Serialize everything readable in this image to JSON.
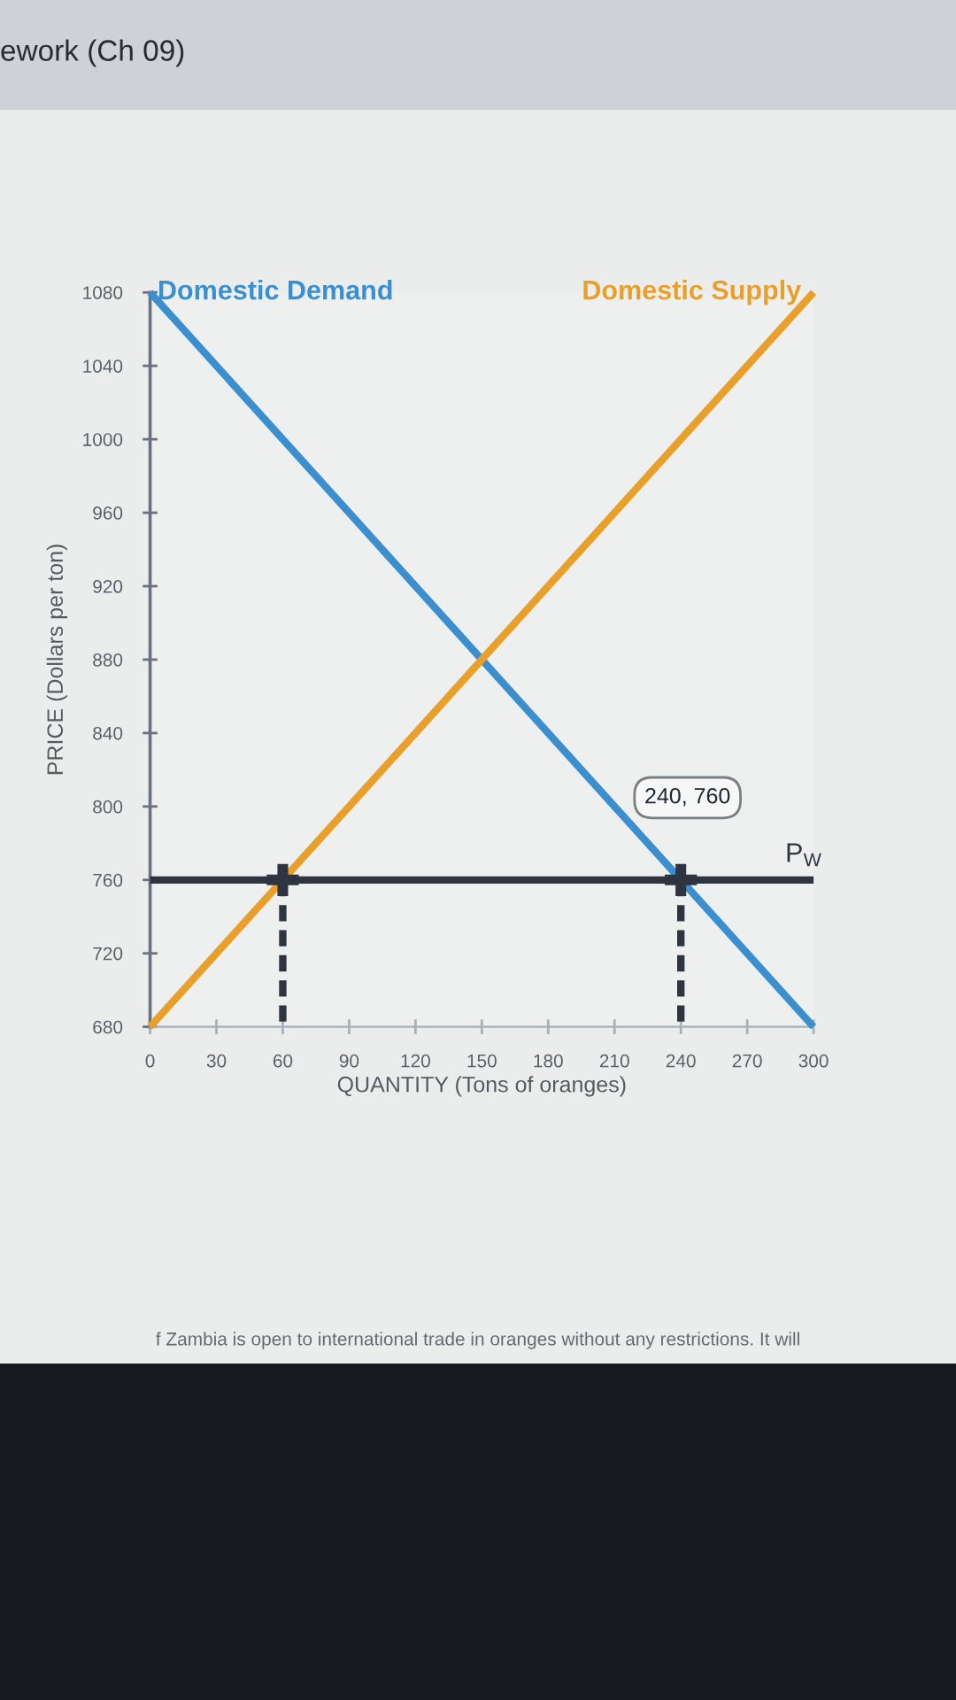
{
  "chart_data": {
    "type": "line",
    "title": "ework (Ch 09)",
    "xlabel": "QUANTITY (Tons of oranges)",
    "ylabel": "PRICE (Dollars per ton)",
    "series": [
      {
        "name": "Domestic Demand",
        "color": "#3b8fcf",
        "x": [
          0,
          300
        ],
        "values": [
          1080,
          680
        ]
      },
      {
        "name": "Domestic Supply",
        "color": "#e8a02a",
        "x": [
          0,
          300
        ],
        "values": [
          680,
          1080
        ]
      },
      {
        "name": "P$_{W}$",
        "color": "#2e3440",
        "x": [
          0,
          300
        ],
        "values": [
          760,
          760
        ]
      },
      {
        "color": "#2e3440",
        "line_style": "dashed",
        "x": [
          60,
          60
        ],
        "values": [
          760,
          680
        ]
      },
      {
        "color": "#2e3440",
        "line_style": "dashed",
        "x": [
          240,
          240
        ],
        "values": [
          760,
          680
        ]
      },
      {
        "type": "scatter",
        "color": "#2e3440",
        "marker": "cross",
        "x": [
          60,
          240
        ],
        "values": [
          760,
          760
        ]
      }
    ],
    "xlim": [
      0,
      300
    ],
    "xticks": [
      0,
      30,
      60,
      90,
      120,
      150,
      180,
      210,
      240,
      270,
      300
    ],
    "ylim": [
      680,
      1080
    ],
    "yticks": [
      680,
      720,
      760,
      800,
      840,
      880,
      920,
      960,
      1000,
      1040,
      1080
    ],
    "annotations": [
      "240, 760",
      "f Zambia is open to international trade in oranges without any restrictions. It will"
    ]
  }
}
